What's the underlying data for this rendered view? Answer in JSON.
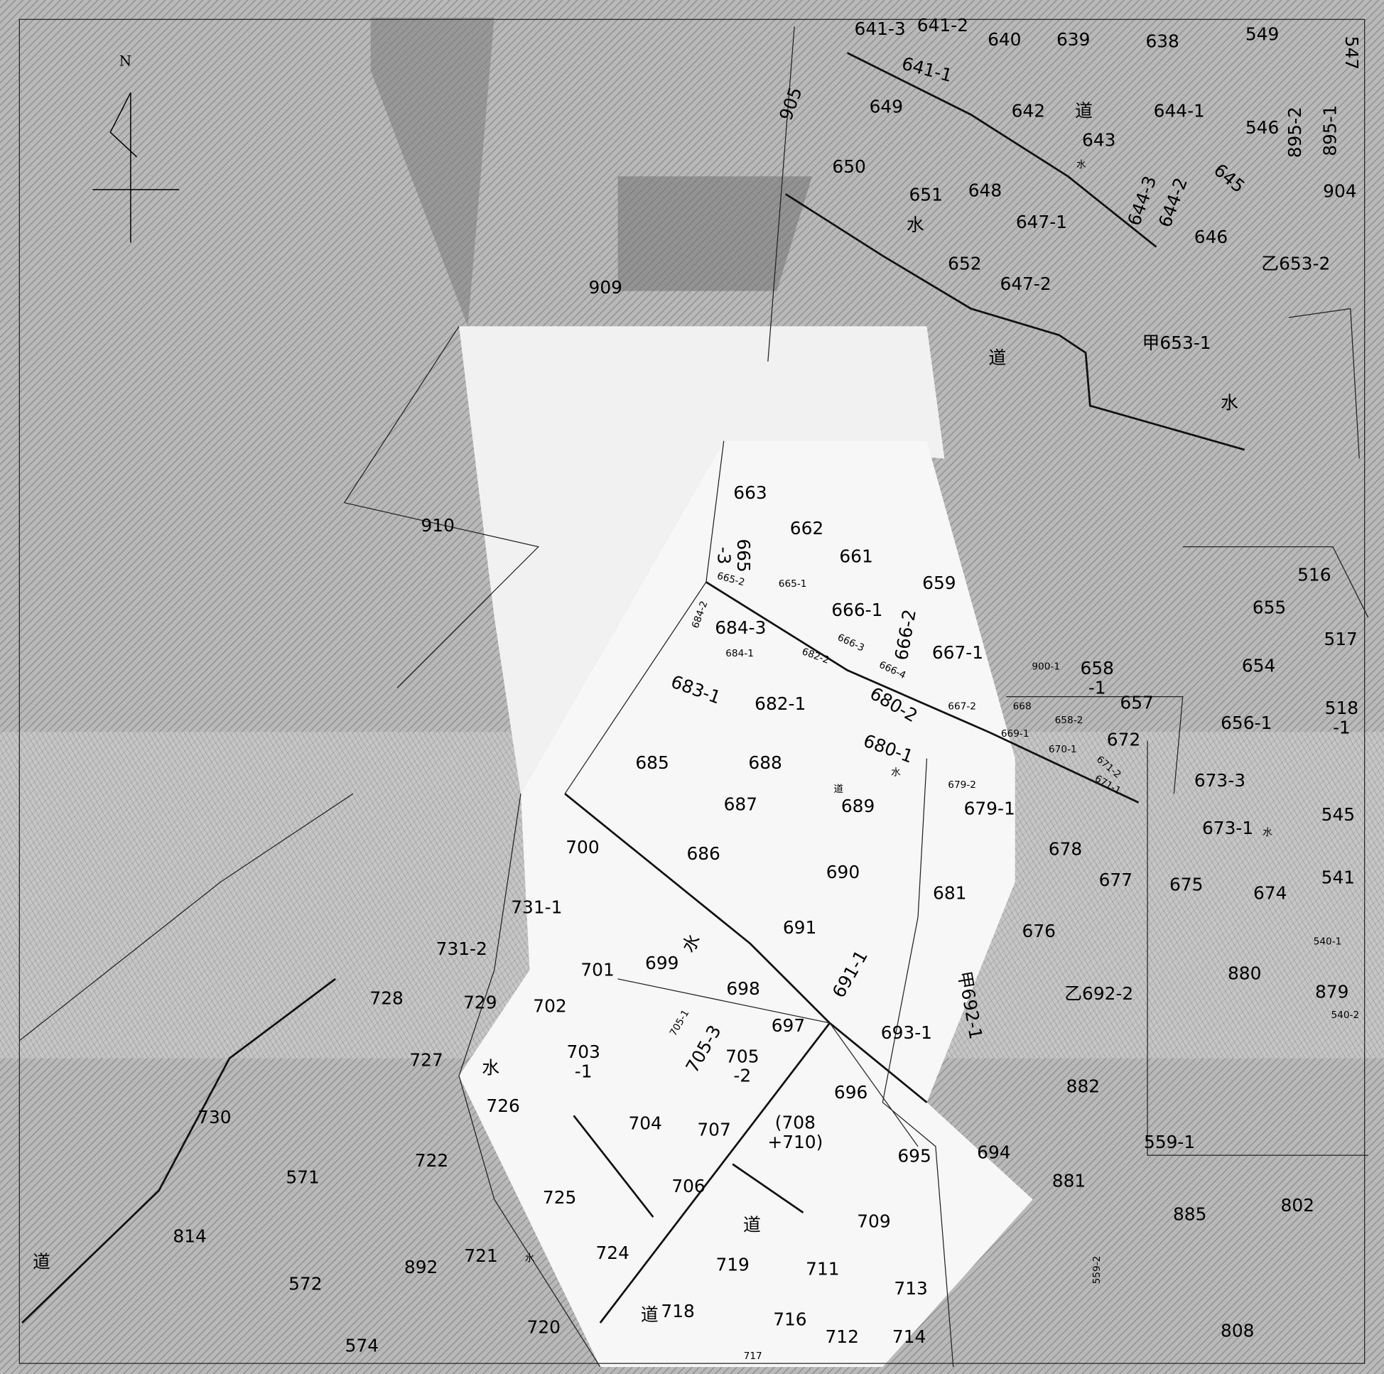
{
  "map": {
    "north": "N",
    "labels": [
      "641-3",
      "641-2",
      "640",
      "639",
      "638",
      "549",
      "547",
      "641-1",
      "905",
      "649",
      "642",
      "道",
      "644-1",
      "546",
      "895-2",
      "895-1",
      "643",
      "水",
      "650",
      "645",
      "651",
      "648",
      "644-3",
      "644-2",
      "904",
      "水",
      "647-1",
      "646",
      "乙653-2",
      "652",
      "647-2",
      "909",
      "甲653-1",
      "道",
      "水",
      "663",
      "910",
      "662",
      [
        "665",
        "-3"
      ],
      "661",
      "516",
      "665-2",
      "665-1",
      "659",
      "655",
      "684-2",
      "666-1",
      "684-3",
      "666-2",
      "517",
      "666-3",
      "684-1",
      "682-2",
      "667-1",
      "654",
      "900-1",
      [
        "658",
        "-1"
      ],
      "666-4",
      "683-1",
      "682-1",
      "680-2",
      "667-2",
      "668",
      "657",
      [
        "518",
        "-1"
      ],
      "658-2",
      "656-1",
      "669-1",
      "672",
      "680-1",
      "670-1",
      "685",
      "688",
      "671-2",
      "水",
      "679-2",
      "673-3",
      "671-1",
      "道",
      "689",
      "687",
      "679-1",
      "673-1",
      "水",
      "545",
      "700",
      "686",
      "678",
      "690",
      "541",
      "677",
      "675",
      "674",
      "731-1",
      "681",
      "691",
      "676",
      "540-1",
      "水",
      "731-2",
      "699",
      "701",
      "880",
      "691-1",
      "甲692-1",
      "698",
      "乙692-2",
      "879",
      "540-2",
      "728",
      "729",
      "702",
      "697",
      "705-1",
      "693-1",
      "705-3",
      "727",
      [
        "703",
        "-1"
      ],
      [
        "705",
        "-2"
      ],
      "水",
      "696",
      "882",
      "726",
      "730",
      "704",
      "707",
      [
        "(708",
        "+710)"
      ],
      "559-1",
      "571",
      "722",
      "695",
      "694",
      "881",
      "725",
      "706",
      "802",
      "885",
      "道",
      "709",
      "814",
      "道",
      "892",
      "721",
      "水",
      "724",
      "719",
      "711",
      "559-2",
      "572",
      "713",
      "道",
      "718",
      "716",
      "574",
      "720",
      "712",
      "714",
      "808",
      "717"
    ]
  }
}
